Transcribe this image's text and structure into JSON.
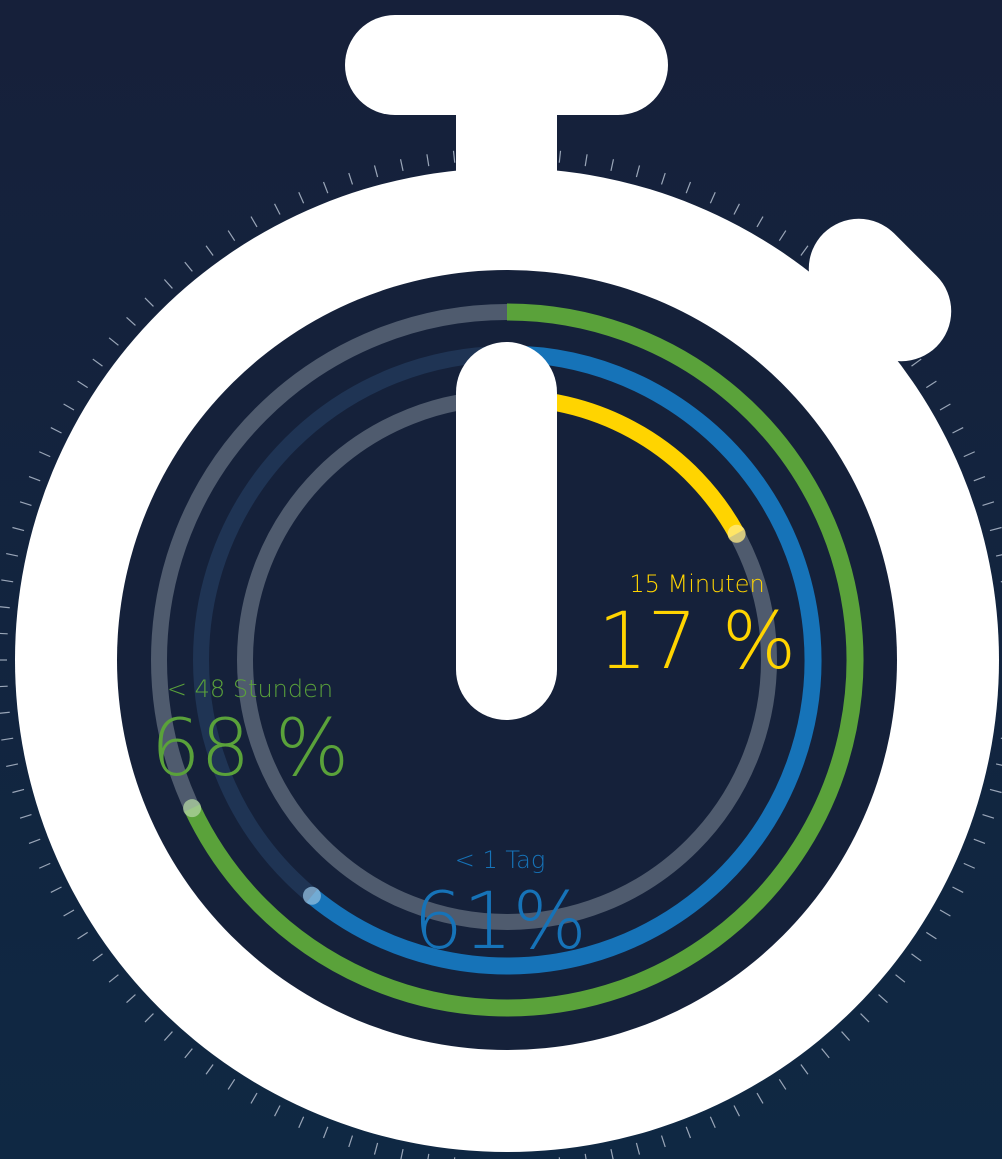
{
  "chart_data": {
    "type": "radial_bar",
    "categories": [
      "15 Minuten",
      "< 1 Tag",
      "< 48 Stunden"
    ],
    "values": [
      17,
      61,
      68
    ],
    "value_labels": [
      "17 %",
      "61%",
      "68 %"
    ],
    "colors": [
      "#ffd400",
      "#1673b8",
      "#5aa23a"
    ],
    "ylim": [
      0,
      100
    ]
  }
}
